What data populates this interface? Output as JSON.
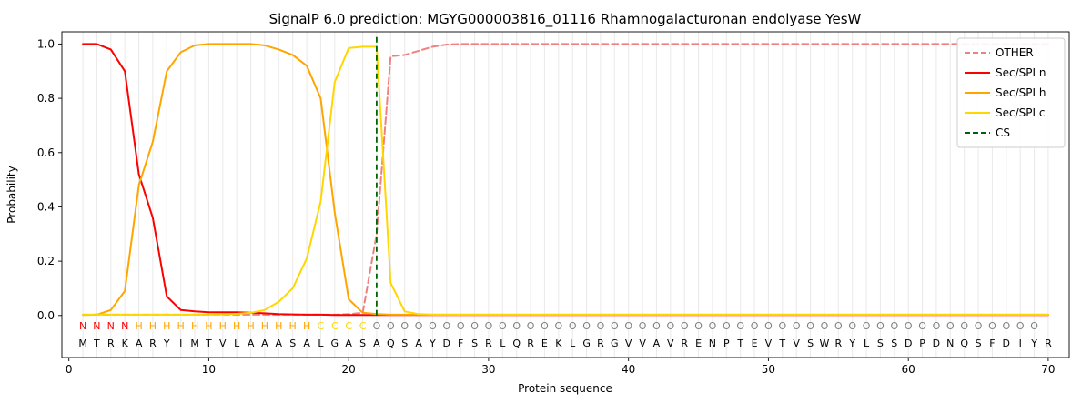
{
  "chart_data": {
    "type": "line",
    "title": "SignalP 6.0 prediction: MGYG000003816_01116 Rhamnogalacturonan endolyase YesW",
    "xlabel": "Protein sequence",
    "ylabel": "Probability",
    "x_ticks": [
      0,
      10,
      20,
      30,
      40,
      50,
      60,
      70
    ],
    "y_ticks": [
      0.0,
      0.2,
      0.4,
      0.6,
      0.8,
      1.0
    ],
    "xlim": [
      -0.5,
      71.5
    ],
    "ylim": [
      -0.155,
      1.045
    ],
    "grid": "vertical-per-residue",
    "legend_position": "upper-right",
    "cs_position": 22,
    "sequence": "MTRKARYIMTVLAAASALGASAQSAYDFSRLQREKLGRGVVAVRENPTEVTVSWRYLSSDPDNQSFDIYR",
    "region_labels": "NNNNHHHHHHHHHHHHHCCCCOOOOOOOOOOOOOOOOOOOOOOOOOOOOOOOOOOOOOOOOOOOOOOOO",
    "region_colors": {
      "N": "#ff0000",
      "H": "#ffa500",
      "C": "#ffd700",
      "O": "#808080"
    },
    "colors": {
      "other": "#f08080",
      "sec_spi_n": "#ff0000",
      "sec_spi_h": "#ffa500",
      "sec_spi_c": "#ffd700",
      "cs": "#006400",
      "gridline": "#e9e9e9",
      "residue_text": "#000000"
    },
    "series": [
      {
        "name": "OTHER",
        "color": "#f08080",
        "dash": true,
        "values": [
          0.003,
          0.003,
          0.003,
          0.003,
          0.003,
          0.003,
          0.003,
          0.003,
          0.003,
          0.003,
          0.003,
          0.003,
          0.003,
          0.003,
          0.003,
          0.003,
          0.003,
          0.003,
          0.003,
          0.005,
          0.01,
          0.3,
          0.955,
          0.96,
          0.975,
          0.99,
          0.998,
          1.0,
          1.0,
          1.0,
          1.0,
          1.0,
          1.0,
          1.0,
          1.0,
          1.0,
          1.0,
          1.0,
          1.0,
          1.0,
          1.0,
          1.0,
          1.0,
          1.0,
          1.0,
          1.0,
          1.0,
          1.0,
          1.0,
          1.0,
          1.0,
          1.0,
          1.0,
          1.0,
          1.0,
          1.0,
          1.0,
          1.0,
          1.0,
          1.0,
          1.0,
          1.0,
          1.0,
          1.0,
          1.0,
          1.0,
          1.0,
          1.0,
          1.0,
          1.0
        ]
      },
      {
        "name": "Sec/SPI n",
        "color": "#ff0000",
        "dash": false,
        "values": [
          1.0,
          1.0,
          0.98,
          0.9,
          0.52,
          0.36,
          0.07,
          0.02,
          0.015,
          0.012,
          0.012,
          0.012,
          0.01,
          0.008,
          0.005,
          0.004,
          0.003,
          0.003,
          0.002,
          0.002,
          0.002,
          0.002,
          0.002,
          0.002,
          0.002,
          0.002,
          0.002,
          0.002,
          0.002,
          0.002,
          0.002,
          0.002,
          0.002,
          0.002,
          0.002,
          0.002,
          0.002,
          0.002,
          0.002,
          0.002,
          0.002,
          0.002,
          0.002,
          0.002,
          0.002,
          0.002,
          0.002,
          0.002,
          0.002,
          0.002,
          0.002,
          0.002,
          0.002,
          0.002,
          0.002,
          0.002,
          0.002,
          0.002,
          0.002,
          0.002,
          0.002,
          0.002,
          0.002,
          0.002,
          0.002,
          0.002,
          0.002,
          0.002,
          0.002,
          0.002
        ]
      },
      {
        "name": "Sec/SPI h",
        "color": "#ffa500",
        "dash": false,
        "values": [
          0.002,
          0.003,
          0.02,
          0.09,
          0.48,
          0.64,
          0.9,
          0.97,
          0.995,
          1.0,
          1.0,
          1.0,
          1.0,
          0.995,
          0.98,
          0.96,
          0.92,
          0.8,
          0.38,
          0.06,
          0.01,
          0.005,
          0.003,
          0.003,
          0.003,
          0.003,
          0.003,
          0.003,
          0.003,
          0.003,
          0.003,
          0.003,
          0.003,
          0.003,
          0.003,
          0.003,
          0.003,
          0.003,
          0.003,
          0.003,
          0.003,
          0.003,
          0.003,
          0.003,
          0.003,
          0.003,
          0.003,
          0.003,
          0.003,
          0.003,
          0.003,
          0.003,
          0.003,
          0.003,
          0.003,
          0.003,
          0.003,
          0.003,
          0.003,
          0.003,
          0.003,
          0.003,
          0.003,
          0.003,
          0.003,
          0.003,
          0.003,
          0.003,
          0.003,
          0.003
        ]
      },
      {
        "name": "Sec/SPI c",
        "color": "#ffd700",
        "dash": false,
        "values": [
          0.003,
          0.003,
          0.003,
          0.003,
          0.003,
          0.003,
          0.003,
          0.003,
          0.003,
          0.003,
          0.004,
          0.006,
          0.01,
          0.02,
          0.05,
          0.1,
          0.21,
          0.42,
          0.86,
          0.985,
          0.99,
          0.99,
          0.12,
          0.015,
          0.005,
          0.003,
          0.003,
          0.003,
          0.003,
          0.003,
          0.003,
          0.003,
          0.003,
          0.003,
          0.003,
          0.003,
          0.003,
          0.003,
          0.003,
          0.003,
          0.003,
          0.003,
          0.003,
          0.003,
          0.003,
          0.003,
          0.003,
          0.003,
          0.003,
          0.003,
          0.003,
          0.003,
          0.003,
          0.003,
          0.003,
          0.003,
          0.003,
          0.003,
          0.003,
          0.003,
          0.003,
          0.003,
          0.003,
          0.003,
          0.003,
          0.003,
          0.003,
          0.003,
          0.003,
          0.003
        ]
      }
    ],
    "cs": {
      "label": "CS",
      "color": "#006400",
      "dash": true
    },
    "legend_labels": [
      "OTHER",
      "Sec/SPI n",
      "Sec/SPI h",
      "Sec/SPI c",
      "CS"
    ]
  }
}
